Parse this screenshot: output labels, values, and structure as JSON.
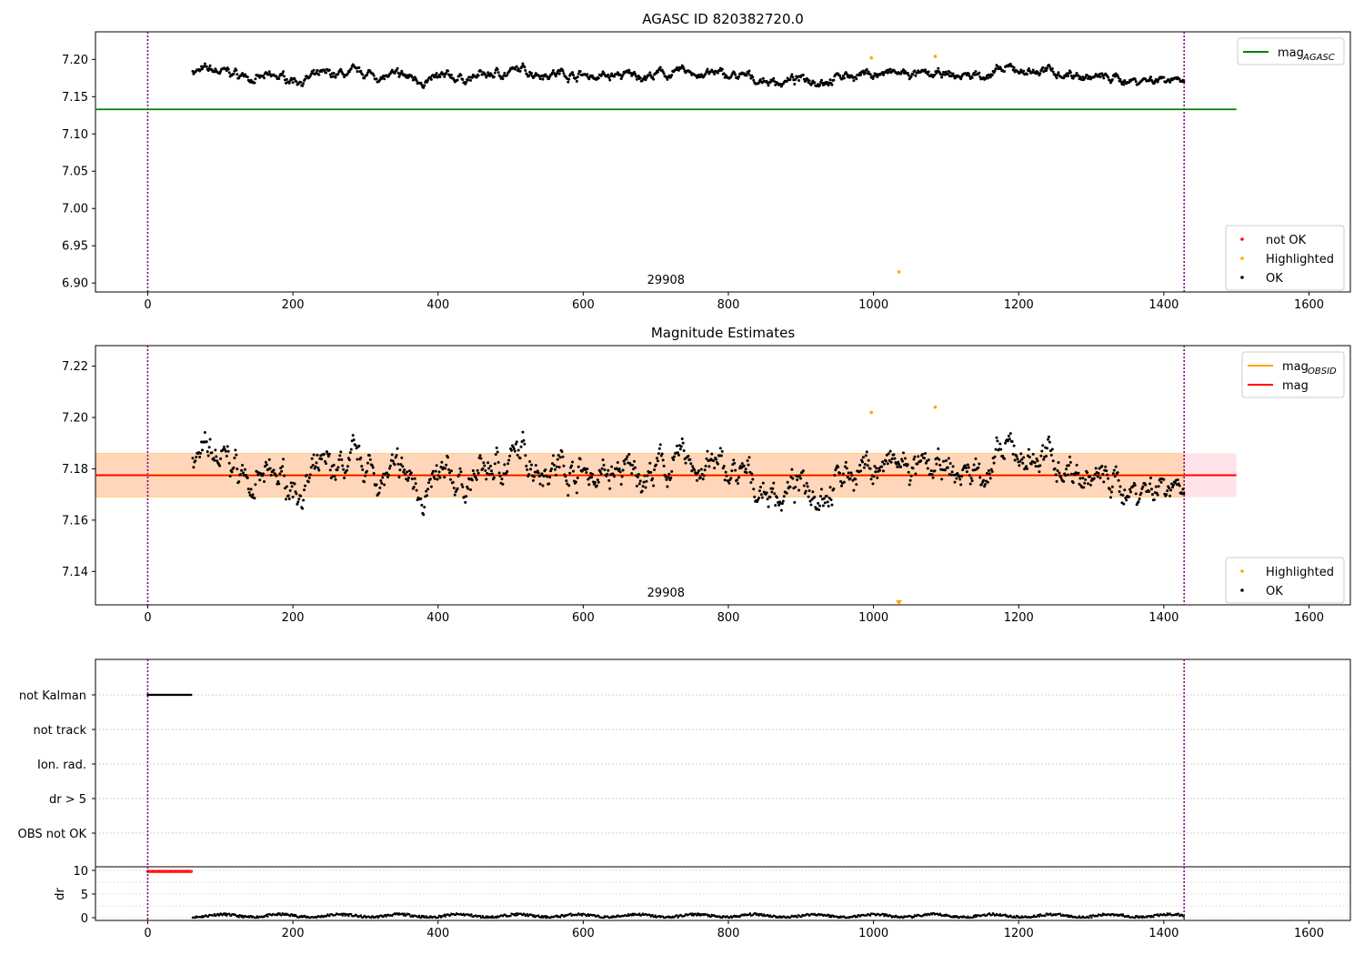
{
  "figure": {
    "title_top": "AGASC ID 820382720.0",
    "title_mid": "Magnitude Estimates"
  },
  "chart_data": [
    {
      "type": "scatter",
      "title": "AGASC ID 820382720.0",
      "xlim": [
        -72,
        1657
      ],
      "ylim": [
        6.888,
        7.237
      ],
      "xticks": [
        0,
        200,
        400,
        600,
        800,
        1000,
        1200,
        1400,
        1600
      ],
      "yticks": [
        6.9,
        6.95,
        7.0,
        7.05,
        7.1,
        7.15,
        7.2
      ],
      "ytick_labels": [
        "6.90",
        "6.95",
        "7.00",
        "7.05",
        "7.10",
        "7.15",
        "7.20"
      ],
      "obsid_label": "29908",
      "obsid_bounds": [
        0,
        1428
      ],
      "hlines": [
        {
          "name": "mag_AGASC",
          "y": 7.133,
          "x": [
            -72,
            1500
          ],
          "color": "#008000"
        }
      ],
      "series": [
        {
          "name": "OK",
          "color": "#000000",
          "x_range": [
            62,
            1428
          ],
          "mean": 7.178,
          "amp": 0.011
        },
        {
          "name": "Highlighted",
          "color": "#ffa500",
          "points": [
            [
              997,
              7.202
            ],
            [
              1085,
              7.204
            ],
            [
              1035,
              6.915
            ]
          ]
        },
        {
          "name": "not OK",
          "color": "#ff0000",
          "points": []
        }
      ],
      "legends": [
        {
          "placement": "upper right",
          "entries": [
            {
              "label": "mag",
              "sub": "AGASC",
              "color": "#008000",
              "kind": "line"
            }
          ]
        },
        {
          "placement": "lower right",
          "entries": [
            {
              "label": "not OK",
              "color": "#ff0000",
              "kind": "dot"
            },
            {
              "label": "Highlighted",
              "color": "#ffa500",
              "kind": "dot"
            },
            {
              "label": "OK",
              "color": "#000000",
              "kind": "dot"
            }
          ]
        }
      ]
    },
    {
      "type": "scatter",
      "title": "Magnitude Estimates",
      "xlim": [
        -72,
        1657
      ],
      "ylim": [
        7.127,
        7.228
      ],
      "xticks": [
        0,
        200,
        400,
        600,
        800,
        1000,
        1200,
        1400,
        1600
      ],
      "yticks": [
        7.14,
        7.16,
        7.18,
        7.2,
        7.22
      ],
      "ytick_labels": [
        "7.14",
        "7.16",
        "7.18",
        "7.20",
        "7.22"
      ],
      "obsid_label": "29908",
      "obsid_bounds": [
        0,
        1428
      ],
      "mag": 7.1775,
      "band_all": [
        7.169,
        7.186
      ],
      "band_obsid": [
        7.169,
        7.186
      ],
      "band_x": [
        -72,
        1500
      ],
      "obsid_mag_span": [
        0,
        1428
      ],
      "series": [
        {
          "name": "OK",
          "color": "#000000",
          "x_range": [
            62,
            1428
          ],
          "mean": 7.178,
          "amp": 0.011
        },
        {
          "name": "Highlighted",
          "color": "#ffa500",
          "points": [
            [
              997,
              7.202
            ],
            [
              1085,
              7.204
            ]
          ]
        }
      ],
      "offscale_marker": {
        "x": 1035,
        "color": "#ffa500"
      },
      "legends": [
        {
          "placement": "upper right",
          "entries": [
            {
              "label": "mag",
              "sub": "OBSID",
              "color": "#ffa500",
              "kind": "line"
            },
            {
              "label": "mag",
              "color": "#ff0000",
              "kind": "line"
            }
          ]
        },
        {
          "placement": "lower right",
          "entries": [
            {
              "label": "Highlighted",
              "color": "#ffa500",
              "kind": "dot"
            },
            {
              "label": "OK",
              "color": "#000000",
              "kind": "dot"
            }
          ]
        }
      ]
    },
    {
      "type": "scatter",
      "title": "",
      "categories": [
        "not Kalman",
        "not track",
        "Ion. rad.",
        "dr > 5",
        "OBS not OK"
      ],
      "flag_points": {
        "category": "not Kalman",
        "x_range": [
          0,
          60
        ],
        "color": "#000000"
      },
      "obsid_bounds": [
        0,
        1428
      ]
    },
    {
      "type": "scatter",
      "title": "",
      "ylabel": "dr",
      "yticks": [
        0,
        5,
        10
      ],
      "ytick_labels": [
        "0",
        "5",
        "10"
      ],
      "xticks": [
        0,
        200,
        400,
        600,
        800,
        1000,
        1200,
        1400,
        1600
      ],
      "series": [
        {
          "name": "dr > 5",
          "color": "#ff0000",
          "x_range": [
            0,
            60
          ],
          "y": 9.8
        },
        {
          "name": "dr",
          "color": "#000000",
          "x_range": [
            62,
            1428
          ],
          "mean": 0.4
        }
      ],
      "obsid_bounds": [
        0,
        1428
      ]
    }
  ]
}
